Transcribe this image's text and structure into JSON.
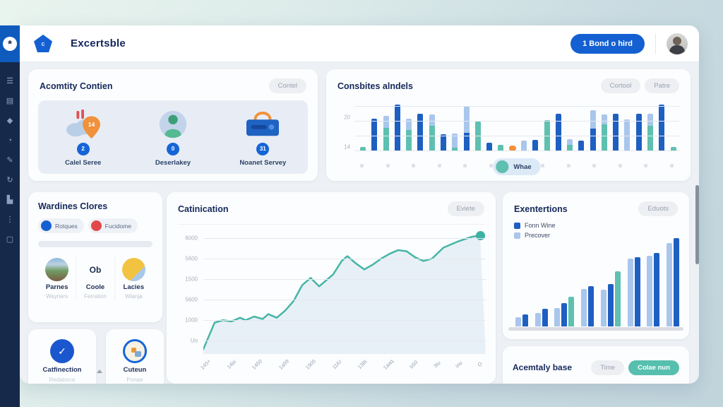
{
  "palette": {
    "blue": "#1e5fc2",
    "teal": "#5ec0b0",
    "lightblue": "#a9c6ec",
    "orange": "#f0913b",
    "red": "#e14848",
    "accent": "#1460d2"
  },
  "header": {
    "title": "Excertsble",
    "logo_letter": "c",
    "logo_star": "*",
    "action_button": "1 Bond o hird"
  },
  "sidebar": {
    "icons": [
      {
        "name": "menu-icon",
        "glyph": "☰"
      },
      {
        "name": "document-icon",
        "glyph": "▤"
      },
      {
        "name": "bookmark-icon",
        "glyph": "◆"
      },
      {
        "name": "globe-icon",
        "glyph": "◔"
      },
      {
        "name": "edit-icon",
        "glyph": "✎"
      },
      {
        "name": "sync-icon",
        "glyph": "↻"
      },
      {
        "name": "chart-icon",
        "glyph": "▙"
      },
      {
        "name": "apps-icon",
        "glyph": "⋮"
      },
      {
        "name": "frame-icon",
        "glyph": "▢"
      }
    ]
  },
  "activity_card": {
    "title": "Acomtity Contien",
    "action": "Contel",
    "items": [
      {
        "badge": "2",
        "label": "Calel Seree",
        "icon": "cloud-pin-icon",
        "pin_value": "14"
      },
      {
        "badge": "0",
        "label": "Deserlakey",
        "icon": "person-icon"
      },
      {
        "badge": "31",
        "label": "Noanet Servey",
        "icon": "briefcase-icon"
      }
    ]
  },
  "consbites_card": {
    "title": "Consbites alndels",
    "actions": [
      "Cortool",
      "Patre"
    ],
    "legend_label": "Whae"
  },
  "wardines_card": {
    "title": "Wardines Clores",
    "toggles": [
      {
        "label": "Rotques",
        "color": "blue"
      },
      {
        "label": "Fucidome",
        "color": "red"
      }
    ],
    "people": [
      {
        "name": "Parnes",
        "role": "Wayners",
        "avatar": "photo"
      },
      {
        "name": "Coole",
        "role": "Ferration",
        "avatar": "text",
        "avatar_text": "Ob"
      },
      {
        "name": "Lacies",
        "role": "Wianja",
        "avatar": "yellow"
      }
    ]
  },
  "catinication_card": {
    "title": "Catinication",
    "action": "Eviete"
  },
  "exentertions_card": {
    "title": "Exentertions",
    "action": "Eduots",
    "legend": [
      {
        "label": "Fonn Wine",
        "color": "blue"
      },
      {
        "label": "Precover",
        "color": "lightblue"
      }
    ]
  },
  "confirmation_card": {
    "title": "Catfinection",
    "subtitle": "Redatorce",
    "check": "✓"
  },
  "custom_card": {
    "title": "Cuteun",
    "subtitle": "Ponae"
  },
  "acemtaly_card": {
    "title": "Acemtaly base",
    "ghost_action": "Time",
    "teal_action": "Colae nun"
  },
  "chart_data": [
    {
      "id": "consbites_bar_chart",
      "type": "bar",
      "title": "Consbites alndels",
      "y_ticks": [
        {
          "label": "20",
          "offset": 42
        },
        {
          "label": "14",
          "offset": 0
        }
      ],
      "gridline_offsets": [
        0,
        21,
        42,
        63
      ],
      "legend": [
        {
          "label": "Whae",
          "color": "teal"
        }
      ],
      "dots_count": 13,
      "bars": [
        {
          "segments": [
            [
              "teal",
              6
            ]
          ]
        },
        {
          "segments": [
            [
              "blue",
              46
            ]
          ]
        },
        {
          "segments": [
            [
              "teal",
              33
            ],
            [
              "lightblue",
              17
            ]
          ]
        },
        {
          "segments": [
            [
              "blue",
              66
            ]
          ]
        },
        {
          "segments": [
            [
              "teal",
              30
            ],
            [
              "lightblue",
              16
            ]
          ]
        },
        {
          "segments": [
            [
              "blue",
              53
            ]
          ]
        },
        {
          "segments": [
            [
              "teal",
              36
            ],
            [
              "lightblue",
              16
            ]
          ]
        },
        {
          "segments": [
            [
              "blue",
              24
            ]
          ]
        },
        {
          "segments": [
            [
              "teal",
              5
            ],
            [
              "lightblue",
              20
            ]
          ]
        },
        {
          "segments": [
            [
              "blue",
              26
            ],
            [
              "lightblue",
              38
            ]
          ]
        },
        {
          "segments": [
            [
              "teal",
              42
            ]
          ]
        },
        {
          "segments": [
            [
              "blue",
              12
            ]
          ]
        },
        {
          "segments": [
            [
              "teal",
              9
            ]
          ]
        },
        {
          "segments": [
            [
              "orange",
              8
            ]
          ]
        },
        {
          "segments": [
            [
              "lightblue",
              15
            ]
          ]
        },
        {
          "segments": [
            [
              "blue",
              16
            ]
          ]
        },
        {
          "segments": [
            [
              "teal",
              44
            ]
          ]
        },
        {
          "segments": [
            [
              "blue",
              53
            ]
          ]
        },
        {
          "segments": [
            [
              "teal",
              9
            ],
            [
              "lightblue",
              8
            ]
          ]
        },
        {
          "segments": [
            [
              "blue",
              15
            ]
          ]
        },
        {
          "segments": [
            [
              "blue",
              32
            ],
            [
              "lightblue",
              26
            ]
          ]
        },
        {
          "segments": [
            [
              "teal",
              38
            ],
            [
              "lightblue",
              14
            ]
          ]
        },
        {
          "segments": [
            [
              "blue",
              53
            ]
          ]
        },
        {
          "segments": [
            [
              "lightblue",
              45
            ]
          ]
        },
        {
          "segments": [
            [
              "blue",
              53
            ]
          ]
        },
        {
          "segments": [
            [
              "teal",
              36
            ],
            [
              "lightblue",
              17
            ]
          ]
        },
        {
          "segments": [
            [
              "blue",
              66
            ]
          ]
        },
        {
          "segments": [
            [
              "teal",
              6
            ]
          ]
        }
      ]
    },
    {
      "id": "catinication_line_chart",
      "type": "area",
      "title": "Catinication",
      "line_color": "#45b5a5",
      "fill_color": "#dfe9f4",
      "grid": true,
      "y_tick_labels": [
        {
          "label": "6000",
          "pos": 4
        },
        {
          "label": "5600",
          "pos": 21
        },
        {
          "label": "1500",
          "pos": 38
        },
        {
          "label": "5600",
          "pos": 55
        },
        {
          "label": "1000",
          "pos": 72
        },
        {
          "label": "Uo",
          "pos": 89
        }
      ],
      "x_tick_labels": [
        "145+",
        "14bi",
        "1450",
        "1a99",
        "1905",
        "11Kr",
        "138t",
        "1aaq",
        "b50",
        "3tu",
        "Inu",
        "O"
      ],
      "points": [
        [
          0,
          4
        ],
        [
          4,
          26
        ],
        [
          7,
          28
        ],
        [
          10,
          27
        ],
        [
          13,
          30
        ],
        [
          15,
          28
        ],
        [
          18,
          31
        ],
        [
          21,
          29
        ],
        [
          23,
          33
        ],
        [
          26,
          30
        ],
        [
          29,
          36
        ],
        [
          32,
          44
        ],
        [
          35,
          57
        ],
        [
          38,
          63
        ],
        [
          41,
          56
        ],
        [
          43,
          60
        ],
        [
          46,
          66
        ],
        [
          49,
          77
        ],
        [
          51,
          81
        ],
        [
          54,
          75
        ],
        [
          57,
          70
        ],
        [
          60,
          74
        ],
        [
          63,
          79
        ],
        [
          66,
          83
        ],
        [
          69,
          86
        ],
        [
          72,
          85
        ],
        [
          75,
          80
        ],
        [
          78,
          77
        ],
        [
          81,
          79
        ],
        [
          85,
          88
        ],
        [
          90,
          93
        ],
        [
          95,
          97
        ],
        [
          98,
          98
        ]
      ]
    },
    {
      "id": "exentertions_bar_chart",
      "type": "bar",
      "title": "Exentertions",
      "series": [
        {
          "name": "Fonn Wine",
          "color": "blue"
        },
        {
          "name": "Precover",
          "color": "lightblue"
        }
      ],
      "groups": [
        [
          [
            "lightblue",
            13
          ],
          [
            "blue",
            17
          ]
        ],
        [
          [
            "lightblue",
            19
          ],
          [
            "blue",
            25
          ]
        ],
        [
          [
            "lightblue",
            26
          ],
          [
            "blue",
            33
          ],
          [
            "teal",
            42
          ]
        ],
        [
          [
            "lightblue",
            53
          ],
          [
            "blue",
            57
          ]
        ],
        [
          [
            "lightblue",
            52
          ],
          [
            "blue",
            60
          ],
          [
            "teal",
            78
          ]
        ],
        [
          [
            "lightblue",
            96
          ],
          [
            "blue",
            98
          ]
        ],
        [
          [
            "lightblue",
            100
          ],
          [
            "blue",
            104
          ]
        ],
        [
          [
            "lightblue",
            118
          ],
          [
            "blue",
            125
          ]
        ]
      ]
    }
  ]
}
